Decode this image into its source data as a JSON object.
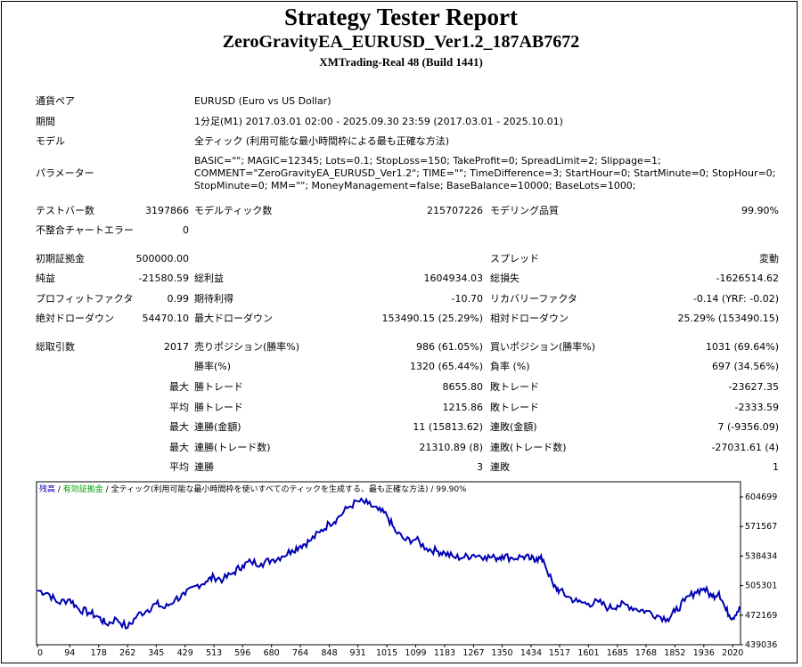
{
  "header": {
    "title": "Strategy Tester Report",
    "ea": "ZeroGravityEA_EURUSD_Ver1.2_187AB7672",
    "server": "XMTrading-Real 48 (Build 1441)"
  },
  "info": {
    "symbol_label": "通貨ペア",
    "symbol": "EURUSD (Euro vs US Dollar)",
    "period_label": "期間",
    "period": "1分足(M1) 2017.03.01 02:00 - 2025.09.30 23:59 (2017.03.01 - 2025.10.01)",
    "model_label": "モデル",
    "model": "全ティック (利用可能な最小時間枠による最も正確な方法)",
    "params_label": "パラメーター",
    "params": "BASIC=\"\"; MAGIC=12345; Lots=0.1; StopLoss=150; TakeProfit=0; SpreadLimit=2; Slippage=1; COMMENT=\"ZeroGravityEA_EURUSD_Ver1.2\"; TIME=\"\"; TimeDifference=3; StartHour=0; StartMinute=0; StopHour=0; StopMinute=0; MM=\"\"; MoneyManagement=false; BaseBalance=10000; BaseLots=1000;"
  },
  "stats": {
    "bars_label": "テストバー数",
    "bars": "3197866",
    "ticks_label": "モデルティック数",
    "ticks": "215707226",
    "quality_label": "モデリング品質",
    "quality": "99.90%",
    "mismatch_label": "不整合チャートエラー",
    "mismatch": "0",
    "deposit_label": "初期証拠金",
    "deposit": "500000.00",
    "spread_label": "スプレッド",
    "spread": "変動",
    "net_label": "純益",
    "net": "-21580.59",
    "gross_profit_label": "総利益",
    "gross_profit": "1604934.03",
    "gross_loss_label": "総損失",
    "gross_loss": "-1626514.62",
    "pf_label": "プロフィットファクタ",
    "pf": "0.99",
    "expected_label": "期待利得",
    "expected": "-10.70",
    "recovery_label": "リカバリーファクタ",
    "recovery": "-0.14 (YRF: -0.02)",
    "abs_dd_label": "絶対ドローダウン",
    "abs_dd": "54470.10",
    "max_dd_label": "最大ドローダウン",
    "max_dd": "153490.15 (25.29%)",
    "rel_dd_label": "相対ドローダウン",
    "rel_dd": "25.29% (153490.15)",
    "total_label": "総取引数",
    "total": "2017",
    "short_label": "売りポジション(勝率%)",
    "short": "986 (61.05%)",
    "long_label": "買いポジション(勝率%)",
    "long": "1031 (69.64%)",
    "winrate_label": "勝率(%)",
    "winrate": "1320 (65.44%)",
    "lossrate_label": "負率 (%)",
    "lossrate": "697 (34.56%)",
    "max_word": "最大",
    "avg_word": "平均",
    "win_trade_label": "勝トレード",
    "loss_trade_label": "敗トレード",
    "max_win": "8655.80",
    "max_loss": "-23627.35",
    "avg_win": "1215.86",
    "avg_loss": "-2333.59",
    "cons_win_amt_label": "連勝(金額)",
    "cons_win_amt": "11 (15813.62)",
    "cons_loss_amt_label": "連敗(金額)",
    "cons_loss_amt": "7 (-9356.09)",
    "cons_profit_label": "連勝(トレード数)",
    "cons_profit": "21310.89 (8)",
    "cons_lossn_label": "連敗(トレード数)",
    "cons_lossn": "-27031.61 (4)",
    "avg_cons_win_label": "連勝",
    "avg_cons_win": "3",
    "avg_cons_loss_label": "連敗",
    "avg_cons_loss": "1"
  },
  "chart_data": {
    "type": "line",
    "legend": {
      "balance": "残高",
      "sep1": " / ",
      "equity": "有効証拠金",
      "sep2": " / ",
      "model": "全ティック(利用可能な最小時間枠を使いすべてのティックを生成する、最も正確な方法)",
      "sep3": " / ",
      "quality": "99.90%"
    },
    "legend_colors": {
      "balance": "#0000b4",
      "equity": "#00a000",
      "text": "#000000"
    },
    "line_color": "#0000b4",
    "x_ticks": [
      0,
      94,
      178,
      262,
      345,
      429,
      513,
      596,
      680,
      764,
      848,
      931,
      1015,
      1099,
      1183,
      1267,
      1350,
      1434,
      1517,
      1601,
      1685,
      1768,
      1852,
      1936,
      2020
    ],
    "y_ticks": [
      604699,
      571567,
      538434,
      505301,
      472169,
      439036
    ],
    "xlim": [
      0,
      2040
    ],
    "ylim": [
      439036,
      604699
    ],
    "x": [
      0,
      30,
      60,
      94,
      120,
      150,
      178,
      200,
      230,
      262,
      290,
      320,
      345,
      370,
      400,
      429,
      460,
      490,
      513,
      540,
      570,
      596,
      620,
      650,
      680,
      710,
      740,
      764,
      790,
      820,
      848,
      870,
      900,
      931,
      960,
      990,
      1015,
      1040,
      1070,
      1099,
      1130,
      1160,
      1183,
      1210,
      1240,
      1267,
      1300,
      1330,
      1350,
      1380,
      1410,
      1434,
      1450,
      1470,
      1500,
      1517,
      1540,
      1570,
      1601,
      1630,
      1660,
      1685,
      1710,
      1740,
      1768,
      1800,
      1830,
      1852,
      1880,
      1910,
      1936,
      1960,
      1980,
      2000,
      2020,
      2040
    ],
    "y": [
      500000,
      497000,
      486000,
      490000,
      479000,
      475000,
      470000,
      462000,
      468000,
      458000,
      472000,
      478000,
      485000,
      480000,
      490000,
      495000,
      505000,
      510000,
      515000,
      512000,
      520000,
      528000,
      532000,
      530000,
      534000,
      538000,
      545000,
      550000,
      555000,
      565000,
      575000,
      580000,
      592000,
      600000,
      597000,
      590000,
      584000,
      566000,
      556000,
      557000,
      547000,
      544000,
      542000,
      537000,
      537000,
      540000,
      538000,
      536000,
      539000,
      536000,
      538000,
      535000,
      536000,
      534000,
      504000,
      500000,
      493000,
      487000,
      485000,
      487000,
      480000,
      483000,
      484000,
      479000,
      477000,
      472000,
      468000,
      476000,
      488000,
      498000,
      502000,
      493000,
      498000,
      478000,
      469000,
      482000
    ]
  }
}
